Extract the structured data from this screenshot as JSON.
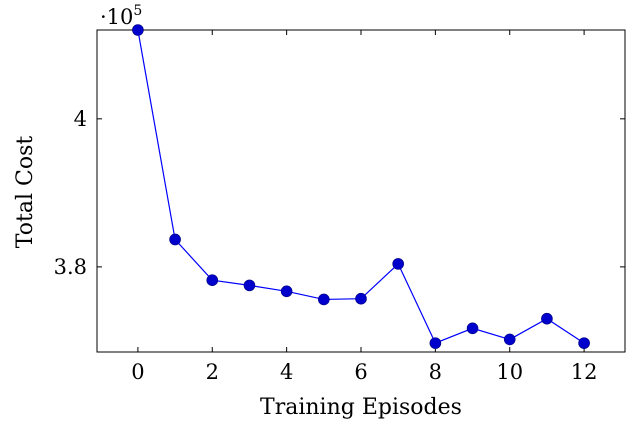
{
  "chart_data": {
    "type": "line",
    "title": "",
    "xlabel": "Training Episodes",
    "ylabel": "Total Cost",
    "multiplier": {
      "base": "·10",
      "exponent": "5"
    },
    "xlim": [
      -1.1,
      13.1
    ],
    "ylim": [
      3.685,
      4.12
    ],
    "xticks": [
      0,
      2,
      4,
      6,
      8,
      10,
      12
    ],
    "xtick_labels": [
      "0",
      "2",
      "4",
      "6",
      "8",
      "10",
      "12"
    ],
    "yticks": [
      3.8,
      4.0
    ],
    "ytick_labels": [
      "3.8",
      "4"
    ],
    "grid": false,
    "series": [
      {
        "color": "#0000ff",
        "marker": "circle",
        "x": [
          0,
          1,
          2,
          3,
          4,
          5,
          6,
          7,
          8,
          9,
          10,
          11,
          12
        ],
        "y": [
          4.12,
          3.837,
          3.782,
          3.775,
          3.767,
          3.756,
          3.757,
          3.804,
          3.697,
          3.717,
          3.702,
          3.73,
          3.697
        ]
      }
    ]
  }
}
